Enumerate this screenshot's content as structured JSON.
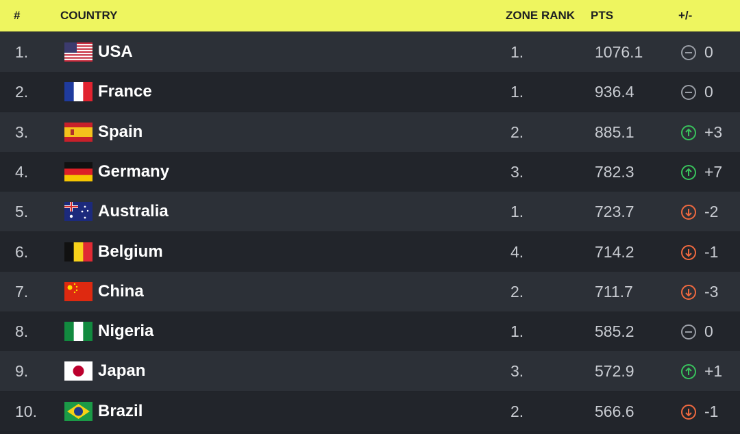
{
  "table": {
    "header": [
      "#",
      "COUNTRY",
      "ZONE RANK",
      "PTS",
      "+/-"
    ],
    "rows": [
      [
        "1.",
        "USA",
        "1.",
        "1076.1",
        "0"
      ],
      [
        "2.",
        "France",
        "1.",
        "936.4",
        "0"
      ],
      [
        "3.",
        "Spain",
        "2.",
        "885.1",
        "+3"
      ],
      [
        "4.",
        "Germany",
        "3.",
        "782.3",
        "+7"
      ],
      [
        "5.",
        "Australia",
        "1.",
        "723.7",
        "-2"
      ],
      [
        "6.",
        "Belgium",
        "4.",
        "714.2",
        "-1"
      ],
      [
        "7.",
        "China",
        "2.",
        "711.7",
        "-3"
      ],
      [
        "8.",
        "Nigeria",
        "1.",
        "585.2",
        "0"
      ],
      [
        "9.",
        "Japan",
        "3.",
        "572.9",
        "+1"
      ],
      [
        "10.",
        "Brazil",
        "2.",
        "566.6",
        "-1"
      ]
    ]
  }
}
